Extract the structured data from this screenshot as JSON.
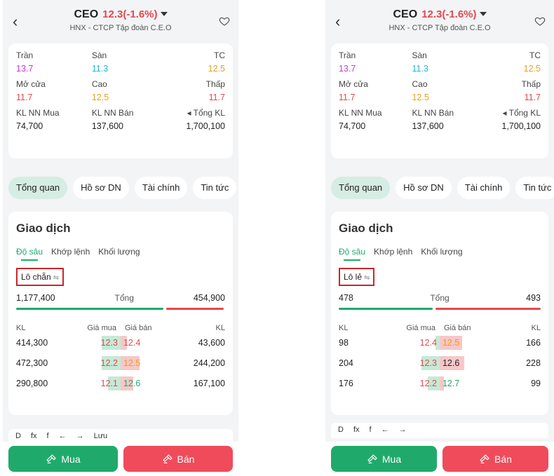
{
  "left": {
    "header": {
      "ticker": "CEO",
      "price_change": "12.3(-1.6%)",
      "company": "HNX - CTCP Tập đoàn C.E.O"
    },
    "info": {
      "tran_label": "Trần",
      "tran_value": "13.7",
      "san_label": "Sàn",
      "san_value": "11.3",
      "tc_label": "TC",
      "tc_value": "12.5",
      "mocua_label": "Mở cửa",
      "mocua_value": "11.7",
      "cao_label": "Cao",
      "cao_value": "12.5",
      "thap_label": "Thấp",
      "thap_value": "11.7",
      "klnnmua_label": "KL NN Mua",
      "klnnmua_value": "74,700",
      "klnnban_label": "KL NN Bán",
      "klnnban_value": "137,600",
      "tongkl_label": "Tổng KL",
      "tongkl_value": "1,700,100"
    },
    "tabs": [
      "Tổng quan",
      "Hồ sơ DN",
      "Tài chính",
      "Tin tức"
    ],
    "trade": {
      "title": "Giao dịch",
      "subtabs": [
        "Độ sâu",
        "Khớp lệnh",
        "Khối lượng"
      ],
      "lot_label": "Lô chẵn",
      "total_buy": "1,177,400",
      "total_label": "Tổng",
      "total_sell": "454,900",
      "head_kl": "KL",
      "head_buy": "Giá mua",
      "head_sell": "Giá bán",
      "head_kr": "KL",
      "rows": [
        {
          "buy_vol": "414,300",
          "buy_price": "12.3",
          "sell_price": "12.4",
          "sell_vol": "43,600"
        },
        {
          "buy_vol": "472,300",
          "buy_price": "12.2",
          "sell_price": "12.5",
          "sell_vol": "244,200"
        },
        {
          "buy_vol": "290,800",
          "buy_price": "12.1",
          "sell_price": "12.6",
          "sell_vol": "167,100"
        }
      ]
    },
    "toolbar": [
      "D",
      "fx",
      "f",
      "←",
      "→",
      "Lưu"
    ],
    "buy_label": "Mua",
    "sell_label": "Bán"
  },
  "right": {
    "header": {
      "ticker": "CEO",
      "price_change": "12.3(-1.6%)",
      "company": "HNX - CTCP Tập đoàn C.E.O"
    },
    "info": {
      "tran_label": "Trần",
      "tran_value": "13.7",
      "san_label": "Sàn",
      "san_value": "11.3",
      "tc_label": "TC",
      "tc_value": "12.5",
      "mocua_label": "Mở cửa",
      "mocua_value": "11.7",
      "cao_label": "Cao",
      "cao_value": "12.5",
      "thap_label": "Thấp",
      "thap_value": "11.7",
      "klnnmua_label": "KL NN Mua",
      "klnnmua_value": "74,700",
      "klnnban_label": "KL NN Bán",
      "klnnban_value": "137,600",
      "tongkl_label": "Tổng KL",
      "tongkl_value": "1,700,100"
    },
    "tabs": [
      "Tổng quan",
      "Hồ sơ DN",
      "Tài chính",
      "Tin tức"
    ],
    "trade": {
      "title": "Giao dịch",
      "subtabs": [
        "Độ sâu",
        "Khớp lệnh",
        "Khối lượng"
      ],
      "lot_label": "Lô lẻ",
      "total_buy": "478",
      "total_label": "Tổng",
      "total_sell": "493",
      "head_kl": "KL",
      "head_buy": "Giá mua",
      "head_sell": "Giá bán",
      "head_kr": "KL",
      "rows": [
        {
          "buy_vol": "98",
          "buy_price": "12.4",
          "sell_price": "12.5",
          "sell_vol": "166"
        },
        {
          "buy_vol": "204",
          "buy_price": "12.3",
          "sell_price": "12.6",
          "sell_vol": "228"
        },
        {
          "buy_vol": "176",
          "buy_price": "12.2",
          "sell_price": "12.7",
          "sell_vol": "99"
        }
      ]
    },
    "toolbar": [
      "D",
      "fx",
      "f",
      "←",
      "→"
    ],
    "buy_label": "Mua",
    "sell_label": "Bán"
  },
  "colors": {
    "green": "#1faa6b",
    "red": "#e5484d",
    "purple": "#c23bd4",
    "cyan": "#22b3d4",
    "orange": "#e9a01c",
    "highlight": "#c62828"
  },
  "depth_fill": {
    "left": {
      "buy": [
        0.45,
        0.45,
        0.3
      ],
      "sell": [
        0.15,
        0.45,
        0.3
      ]
    },
    "right": {
      "buy": [
        0.1,
        0.45,
        0.3
      ],
      "sell": [
        0.55,
        0.6,
        0.1
      ]
    }
  }
}
